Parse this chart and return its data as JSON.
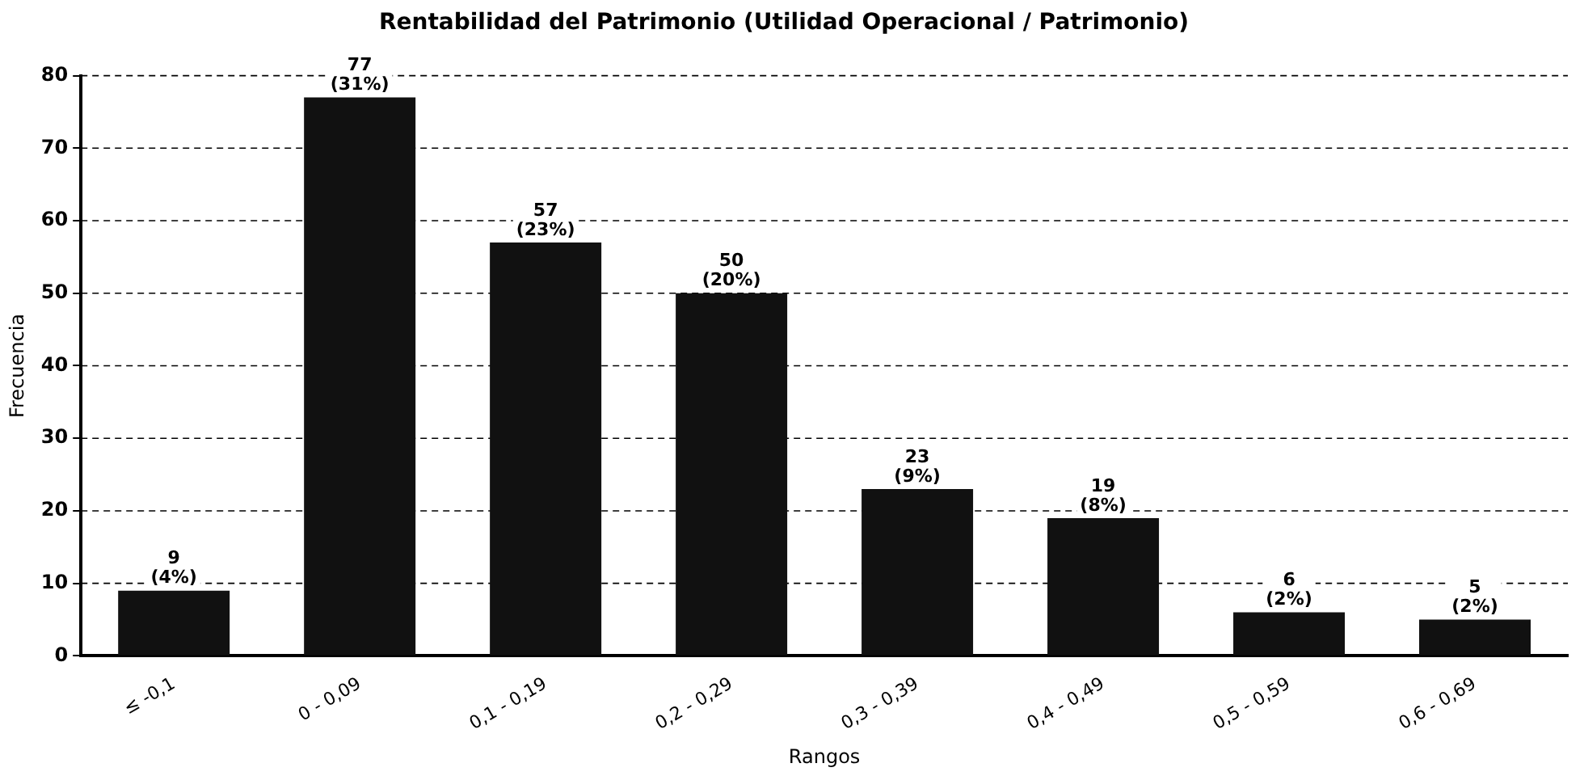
{
  "chart_data": {
    "type": "bar",
    "title": "Rentabilidad del Patrimonio (Utilidad Operacional / Patrimonio)",
    "xlabel": "Rangos",
    "ylabel": "Frecuencia",
    "categories": [
      "≤ -0,1",
      "0 - 0,09",
      "0,1 - 0,19",
      "0,2 - 0,29",
      "0,3 - 0,39",
      "0,4 - 0,49",
      "0,5 - 0,59",
      "0,6 - 0,69"
    ],
    "values": [
      9,
      77,
      57,
      50,
      23,
      19,
      6,
      5
    ],
    "value_labels": [
      "9\n(4%)",
      "77\n(31%)",
      "57\n(23%)",
      "50\n(20%)",
      "23\n(9%)",
      "19\n(8%)",
      "6\n(2%)",
      "5\n(2%)"
    ],
    "color": "#111111",
    "ylim": [
      0,
      80
    ],
    "yticks": [
      0,
      10,
      20,
      30,
      40,
      50,
      60,
      70,
      80
    ],
    "grid": "y",
    "line_style": "dashed",
    "legend": false
  }
}
